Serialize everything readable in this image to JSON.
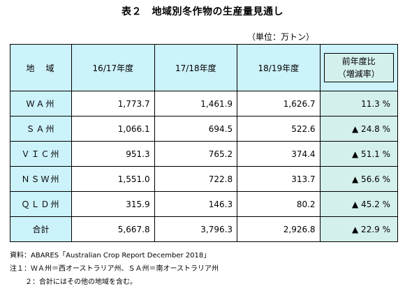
{
  "title": "表２　地域別冬作物の生産量見通し",
  "unit": "（単位：万トン）",
  "table": {
    "headers": {
      "region": "地　域",
      "y1": "16/17年度",
      "y2": "17/18年度",
      "y3": "18/19年度",
      "pct_line1": "前年度比",
      "pct_line2": "（増減率）"
    },
    "rows": [
      {
        "region": "ＷＡ州",
        "y1": "1,773.7",
        "y2": "1,461.9",
        "y3": "1,626.7",
        "pct": "11.3 %"
      },
      {
        "region": "ＳＡ州",
        "y1": "1,066.1",
        "y2": "694.5",
        "y3": "522.6",
        "pct": "▲ 24.8 %"
      },
      {
        "region": "ＶＩＣ州",
        "y1": "951.3",
        "y2": "765.2",
        "y3": "374.4",
        "pct": "▲ 51.1 %"
      },
      {
        "region": "ＮＳＷ州",
        "y1": "1,551.0",
        "y2": "722.8",
        "y3": "313.7",
        "pct": "▲ 56.6 %"
      },
      {
        "region": "ＱＬＤ州",
        "y1": "315.9",
        "y2": "146.3",
        "y3": "80.2",
        "pct": "▲ 45.2 %"
      },
      {
        "region": "合計",
        "y1": "5,667.8",
        "y2": "3,796.3",
        "y3": "2,926.8",
        "pct": "▲ 22.9 %"
      }
    ]
  },
  "notes": {
    "source": "資料：ABARES「Australian Crop Report December 2018」",
    "note1": "注１：ＷＡ州＝西オーストラリア州、ＳＡ州＝南オーストラリア州",
    "note2": "２：合計にはその他の地域を含む。"
  }
}
